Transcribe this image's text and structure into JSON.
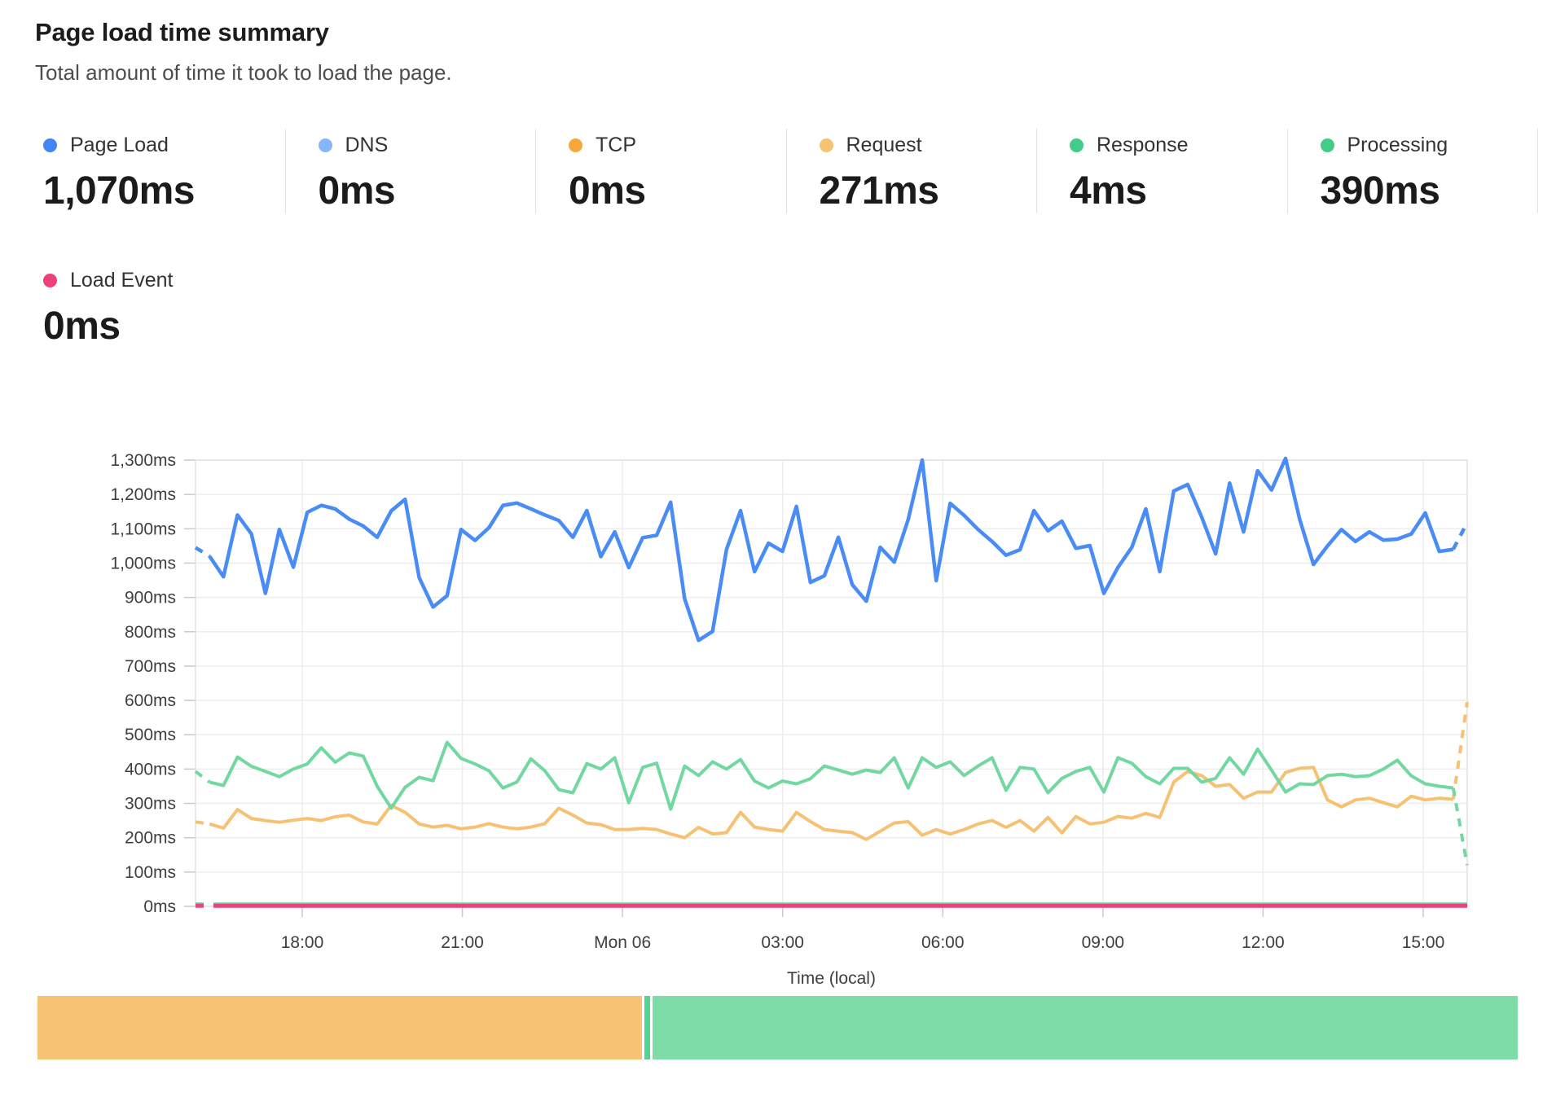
{
  "header": {
    "title": "Page load time summary",
    "subtitle": "Total amount of time it took to load the page."
  },
  "summary": {
    "row1": [
      {
        "label": "Page Load",
        "value": "1,070ms",
        "dot_color": "#4285f4"
      },
      {
        "label": "DNS",
        "value": "0ms",
        "dot_color": "#8ab4f8"
      },
      {
        "label": "TCP",
        "value": "0ms",
        "dot_color": "#f7a83d"
      },
      {
        "label": "Request",
        "value": "271ms",
        "dot_color": "#f8c273"
      },
      {
        "label": "Response",
        "value": "4ms",
        "dot_color": "#42cc87"
      },
      {
        "label": "Processing",
        "value": "390ms",
        "dot_color": "#42cc87"
      }
    ],
    "row2": [
      {
        "label": "Load Event",
        "value": "0ms",
        "dot_color": "#ee4079"
      }
    ]
  },
  "chart_data": {
    "type": "line",
    "title": "",
    "xlabel": "Time (local)",
    "ylabel": "",
    "ylim": [
      0,
      1300
    ],
    "y_tick_step": 100,
    "y_tick_suffix": "ms",
    "x_tick_labels": [
      "18:00",
      "21:00",
      "Mon 06",
      "03:00",
      "06:00",
      "09:00",
      "12:00",
      "15:00"
    ],
    "grid": true,
    "legend_position": "none",
    "note": "First and last segments of each sampled series are dashed (partial buckets). DNS and TCP are flat 0ms lines hidden under the Load Event line on the baseline.",
    "series": [
      {
        "name": "DNS",
        "color": "#8ab4f8",
        "flat_value": 0,
        "width": 3,
        "dash_first": true
      },
      {
        "name": "TCP",
        "color": "#f7a83d",
        "flat_value": 0,
        "width": 3,
        "dash_first": true
      },
      {
        "name": "Response",
        "color": "#72d8a0",
        "flat_value": 8,
        "width": 3,
        "dash_first": true
      },
      {
        "name": "Load Event",
        "color": "#ec417d",
        "flat_value": 2,
        "width": 5,
        "dash_first": true
      },
      {
        "name": "Request",
        "color": "#f7c173",
        "width": 4,
        "dash_first": true,
        "dash_last": true,
        "values": [
          246,
          240,
          228,
          282,
          256,
          250,
          245,
          251,
          256,
          250,
          261,
          266,
          246,
          240,
          294,
          274,
          240,
          231,
          236,
          226,
          231,
          241,
          231,
          226,
          231,
          241,
          286,
          266,
          243,
          238,
          224,
          224,
          227,
          224,
          211,
          200,
          230,
          211,
          215,
          274,
          231,
          224,
          219,
          274,
          247,
          224,
          219,
          215,
          195,
          219,
          243,
          247,
          207,
          224,
          211,
          224,
          240,
          250,
          230,
          250,
          219,
          259,
          214,
          262,
          240,
          245,
          262,
          257,
          271,
          259,
          362,
          393,
          381,
          350,
          355,
          315,
          333,
          333,
          390,
          402,
          405,
          310,
          290,
          310,
          315,
          302,
          290,
          321,
          310,
          315,
          312,
          595
        ]
      },
      {
        "name": "Processing",
        "color": "#72d8a0",
        "width": 4,
        "dash_first": true,
        "dash_last": true,
        "values": [
          393,
          362,
          352,
          435,
          408,
          393,
          378,
          400,
          415,
          462,
          420,
          447,
          438,
          350,
          286,
          347,
          376,
          366,
          478,
          431,
          415,
          395,
          345,
          362,
          430,
          395,
          340,
          331,
          416,
          400,
          433,
          302,
          405,
          417,
          283,
          409,
          381,
          421,
          400,
          428,
          365,
          345,
          365,
          357,
          372,
          409,
          397,
          385,
          397,
          390,
          433,
          345,
          433,
          405,
          421,
          381,
          409,
          433,
          338,
          405,
          400,
          331,
          373,
          393,
          405,
          333,
          433,
          417,
          378,
          357,
          402,
          402,
          362,
          373,
          433,
          385,
          458,
          397,
          333,
          357,
          355,
          381,
          385,
          378,
          381,
          400,
          426,
          380,
          357,
          350,
          345,
          120
        ]
      },
      {
        "name": "Page Load",
        "color": "#4a8cf5",
        "width": 4.5,
        "dash_first": true,
        "dash_last": true,
        "values": [
          1045,
          1020,
          960,
          1140,
          1085,
          912,
          1098,
          988,
          1148,
          1168,
          1158,
          1128,
          1108,
          1075,
          1152,
          1186,
          958,
          872,
          905,
          1098,
          1066,
          1103,
          1168,
          1175,
          1158,
          1140,
          1124,
          1075,
          1153,
          1019,
          1091,
          987,
          1074,
          1081,
          1177,
          896,
          775,
          801,
          1040,
          1153,
          975,
          1058,
          1034,
          1165,
          944,
          963,
          1075,
          937,
          889,
          1046,
          1003,
          1127,
          1300,
          949,
          1174,
          1139,
          1098,
          1063,
          1023,
          1039,
          1153,
          1094,
          1122,
          1043,
          1051,
          912,
          987,
          1046,
          1158,
          975,
          1210,
          1229,
          1134,
          1027,
          1233,
          1091,
          1269,
          1213,
          1305,
          1129,
          996,
          1050,
          1098,
          1063,
          1091,
          1067,
          1070,
          1085,
          1146,
          1034,
          1040,
          1118
        ]
      }
    ]
  },
  "footer_bar": {
    "segments": [
      {
        "name": "request-share",
        "color": "#f8c274",
        "fraction": 0.4098
      },
      {
        "name": "divider-sliver",
        "color": "#54d492",
        "fraction": 0.0039
      },
      {
        "name": "processing-share",
        "color": "#7edda6",
        "fraction": 0.5863
      }
    ]
  }
}
